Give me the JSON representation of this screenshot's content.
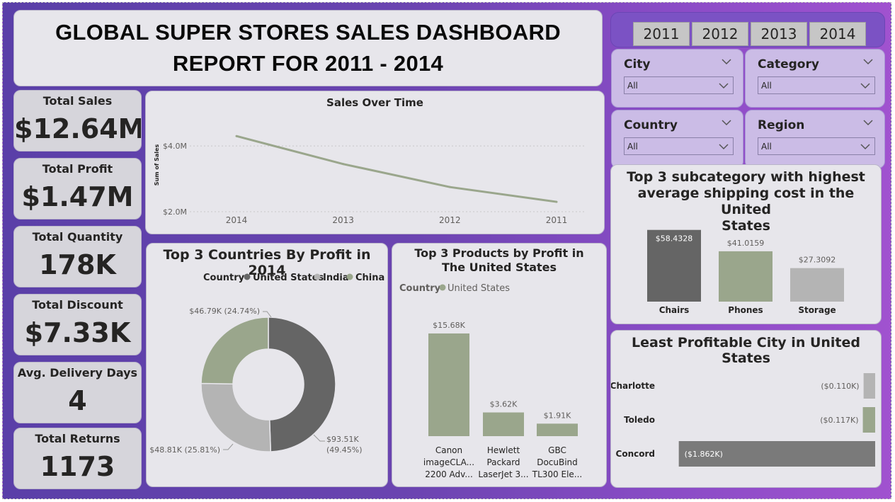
{
  "header": {
    "title_line1": "GLOBAL SUPER STORES SALES DASHBOARD",
    "title_line2": "REPORT FOR 2011 - 2014"
  },
  "kpis": [
    {
      "label": "Total Sales",
      "value": "$12.64M"
    },
    {
      "label": "Total Profit",
      "value": "$1.47M"
    },
    {
      "label": "Total Quantity",
      "value": "178K"
    },
    {
      "label": "Total Discount",
      "value": "$7.33K"
    },
    {
      "label": "Avg. Delivery Days",
      "value": "4"
    },
    {
      "label": "Total Returns",
      "value": "1173"
    }
  ],
  "year_buttons": [
    "2011",
    "2012",
    "2013",
    "2014"
  ],
  "slicers": [
    {
      "label": "City",
      "value": "All",
      "chevron": "chevron-down-icon"
    },
    {
      "label": "Category",
      "value": "All",
      "chevron": "chevron-down-icon"
    },
    {
      "label": "Country",
      "value": "All",
      "chevron": "chevron-down-icon"
    },
    {
      "label": "Region",
      "value": "All",
      "chevron": "chevron-down-icon"
    }
  ],
  "colors": {
    "dark_gray": "#656565",
    "sage": "#9aa68c",
    "light_gray": "#b4b4b4",
    "gray": "#7a7a7a",
    "line": "#9aa68c"
  },
  "chart_data": [
    {
      "id": "sales_over_time",
      "type": "line",
      "title": "Sales Over Time",
      "ylabel": "Sum of Sales",
      "x": [
        "2014",
        "2013",
        "2012",
        "2011"
      ],
      "values": [
        4.3,
        3.45,
        2.75,
        2.3
      ],
      "y_ticks": [
        2.0,
        4.0
      ],
      "y_tick_labels": [
        "$2.0M",
        "$4.0M"
      ],
      "ylim": [
        2.0,
        4.8
      ],
      "grid": true
    },
    {
      "id": "top_countries_profit",
      "type": "pie",
      "title": "Top 3 Countries By Profit in 2014",
      "legend_title": "Country",
      "legend_position": "top",
      "slices": [
        {
          "name": "United States",
          "value": 93.51,
          "label": "$93.51K",
          "pct": "(49.45%)"
        },
        {
          "name": "India",
          "value": 48.81,
          "label": "$48.81K (25.81%)"
        },
        {
          "name": "China",
          "value": 46.79,
          "label": "$46.79K (24.74%)"
        }
      ]
    },
    {
      "id": "top_products_profit",
      "type": "bar",
      "title": "Top 3 Products by Profit in The United States",
      "legend_title": "Country",
      "legend_entry": "United States",
      "categories": [
        [
          "Canon",
          "imageCLA...",
          "2200 Adv..."
        ],
        [
          "Hewlett",
          "Packard",
          "LaserJet 3..."
        ],
        [
          "GBC",
          "DocuBind",
          "TL300 Ele..."
        ]
      ],
      "values": [
        15.68,
        3.62,
        1.91
      ],
      "data_labels": [
        "$15.68K",
        "$3.62K",
        "$1.91K"
      ],
      "ylim": [
        0,
        16
      ]
    },
    {
      "id": "top_subcategory_shipping",
      "type": "bar",
      "title": "Top 3 subcategory with highest average shipping cost in the United States",
      "title_lines": [
        "Top 3 subcategory with highest",
        "average shipping cost in the United",
        "States"
      ],
      "categories": [
        "Chairs",
        "Phones",
        "Storage"
      ],
      "values": [
        58.4328,
        41.0159,
        27.3092
      ],
      "data_labels": [
        "$58.4328",
        "$41.0159",
        "$27.3092"
      ],
      "ylim": [
        0,
        60
      ]
    },
    {
      "id": "least_profitable_city",
      "type": "bar",
      "orientation": "horizontal",
      "title": "Least Profitable City in United States",
      "categories": [
        "Charlotte",
        "Toledo",
        "Concord"
      ],
      "values": [
        -0.11,
        -0.117,
        -1.862
      ],
      "data_labels": [
        "($0.110K)",
        "($0.117K)",
        "($1.862K)"
      ],
      "xlim": [
        -1.9,
        0
      ]
    }
  ]
}
